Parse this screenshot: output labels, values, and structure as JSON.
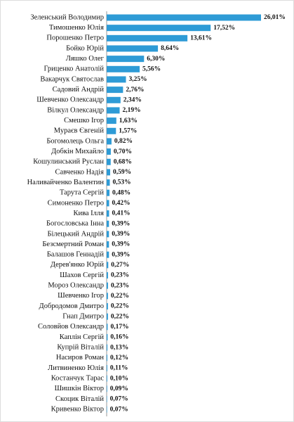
{
  "chart_data": {
    "type": "bar",
    "orientation": "horizontal",
    "color": "#2e9bd6",
    "categories": [
      "Зеленський Володимир",
      "Тимошенко Юлія",
      "Порошенко Петро",
      "Бойко Юрій",
      "Ляшко Олег",
      "Гриценко Анатолій",
      "Вакарчук Святослав",
      "Садовий Андрій",
      "Шевченко Олександр",
      "Вілкул Олександр",
      "Смешко Ігор",
      "Мураєв Євгеній",
      "Богомолець Ольга",
      "Добкін Михайло",
      "Кошулинський Руслан",
      "Савченко Надія",
      "Наливайченко Валентин",
      "Тарута Сергій",
      "Симоненко Петро",
      "Кива Ілля",
      "Богословська Інна",
      "Білецький Андрій",
      "Безсмертний Роман",
      "Балашов Геннадій",
      "Дерев'янко Юрій",
      "Шахов Сергій",
      "Мороз Олександр",
      "Шевченко Ігор",
      "Добродомов Дмитро",
      "Гнап Дмитро",
      "Соловйов Олександр",
      "Каплін Сергій",
      "Купрій Віталій",
      "Насиров Роман",
      "Литвиненко Юлія",
      "Костанчук Тарас",
      "Шишкін Віктор",
      "Скоцик Віталій",
      "Кривенко Віктор"
    ],
    "values": [
      26.01,
      17.52,
      13.61,
      8.64,
      6.3,
      5.56,
      3.25,
      2.76,
      2.34,
      2.19,
      1.63,
      1.57,
      0.82,
      0.7,
      0.68,
      0.59,
      0.53,
      0.48,
      0.42,
      0.41,
      0.39,
      0.39,
      0.39,
      0.39,
      0.27,
      0.23,
      0.23,
      0.22,
      0.22,
      0.22,
      0.17,
      0.16,
      0.13,
      0.12,
      0.11,
      0.1,
      0.09,
      0.07,
      0.07
    ],
    "value_labels": [
      "26,01%",
      "17,52%",
      "13,61%",
      "8,64%",
      "6,30%",
      "5,56%",
      "3,25%",
      "2,76%",
      "2,34%",
      "2,19%",
      "1,63%",
      "1,57%",
      "0,82%",
      "0,70%",
      "0,68%",
      "0,59%",
      "0,53%",
      "0,48%",
      "0,42%",
      "0,41%",
      "0,39%",
      "0,39%",
      "0,39%",
      "0,39%",
      "0,27%",
      "0,23%",
      "0,23%",
      "0,22%",
      "0,22%",
      "0,22%",
      "0,17%",
      "0,16%",
      "0,13%",
      "0,12%",
      "0,11%",
      "0,10%",
      "0,09%",
      "0,07%",
      "0,07%"
    ]
  }
}
